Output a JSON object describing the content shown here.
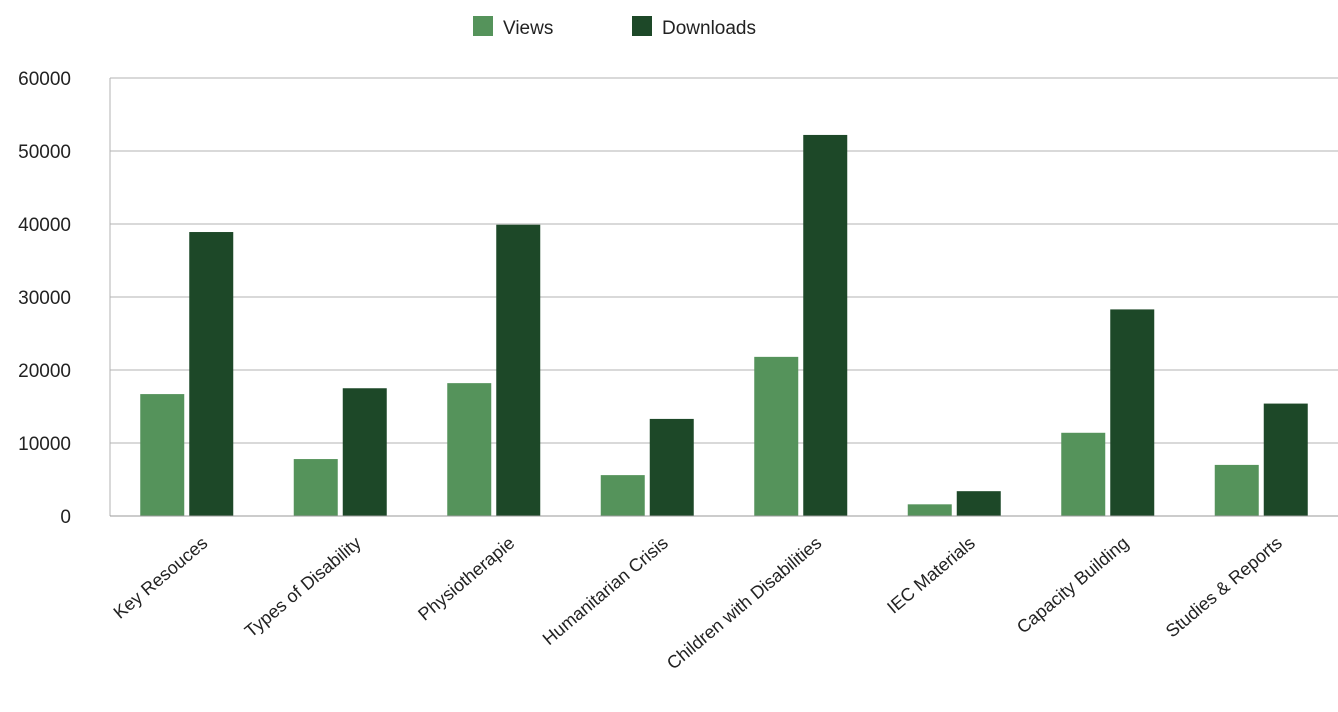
{
  "chart_data": {
    "type": "bar",
    "categories": [
      "Key Resouces",
      "Types of Disability",
      "Physiotherapie",
      "Humanitarian Crisis",
      "Children with Disabilities",
      "IEC Materials",
      "Capacity Building",
      "Studies & Reports"
    ],
    "series": [
      {
        "name": "Views",
        "color": "#55935b",
        "values": [
          16700,
          7800,
          18200,
          5600,
          21800,
          1600,
          11400,
          7000
        ]
      },
      {
        "name": "Downloads",
        "color": "#1d4828",
        "values": [
          38900,
          17500,
          39900,
          13300,
          52200,
          3400,
          28300,
          15400
        ]
      }
    ],
    "yticks": [
      "0",
      "10000",
      "20000",
      "30000",
      "40000",
      "50000",
      "60000"
    ],
    "ylim": [
      0,
      60000
    ],
    "grid": true,
    "legend_position": "top-center",
    "title": "",
    "xlabel": "",
    "ylabel": ""
  }
}
